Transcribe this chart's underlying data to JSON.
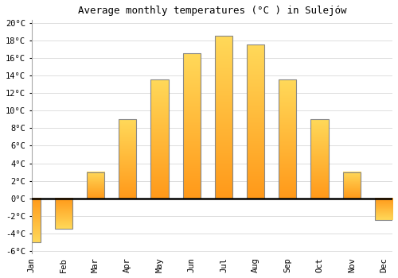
{
  "months": [
    "Jan",
    "Feb",
    "Mar",
    "Apr",
    "May",
    "Jun",
    "Jul",
    "Aug",
    "Sep",
    "Oct",
    "Nov",
    "Dec"
  ],
  "temperatures": [
    -5.0,
    -3.5,
    3.0,
    9.0,
    13.5,
    16.5,
    18.5,
    17.5,
    13.5,
    9.0,
    3.0,
    -2.5
  ],
  "title": "Average monthly temperatures (°C ) in Sulejów",
  "ylim_min": -6,
  "ylim_max": 20,
  "yticks": [
    -6,
    -4,
    -2,
    0,
    2,
    4,
    6,
    8,
    10,
    12,
    14,
    16,
    18,
    20
  ],
  "bar_color_top": "#FFD966",
  "bar_color_bottom": "#FFA500",
  "bar_edge_color": "#888888",
  "background_color": "#ffffff",
  "grid_color": "#dddddd",
  "zero_line_color": "#000000",
  "bar_width": 0.55,
  "title_fontsize": 9,
  "tick_fontsize": 7.5
}
